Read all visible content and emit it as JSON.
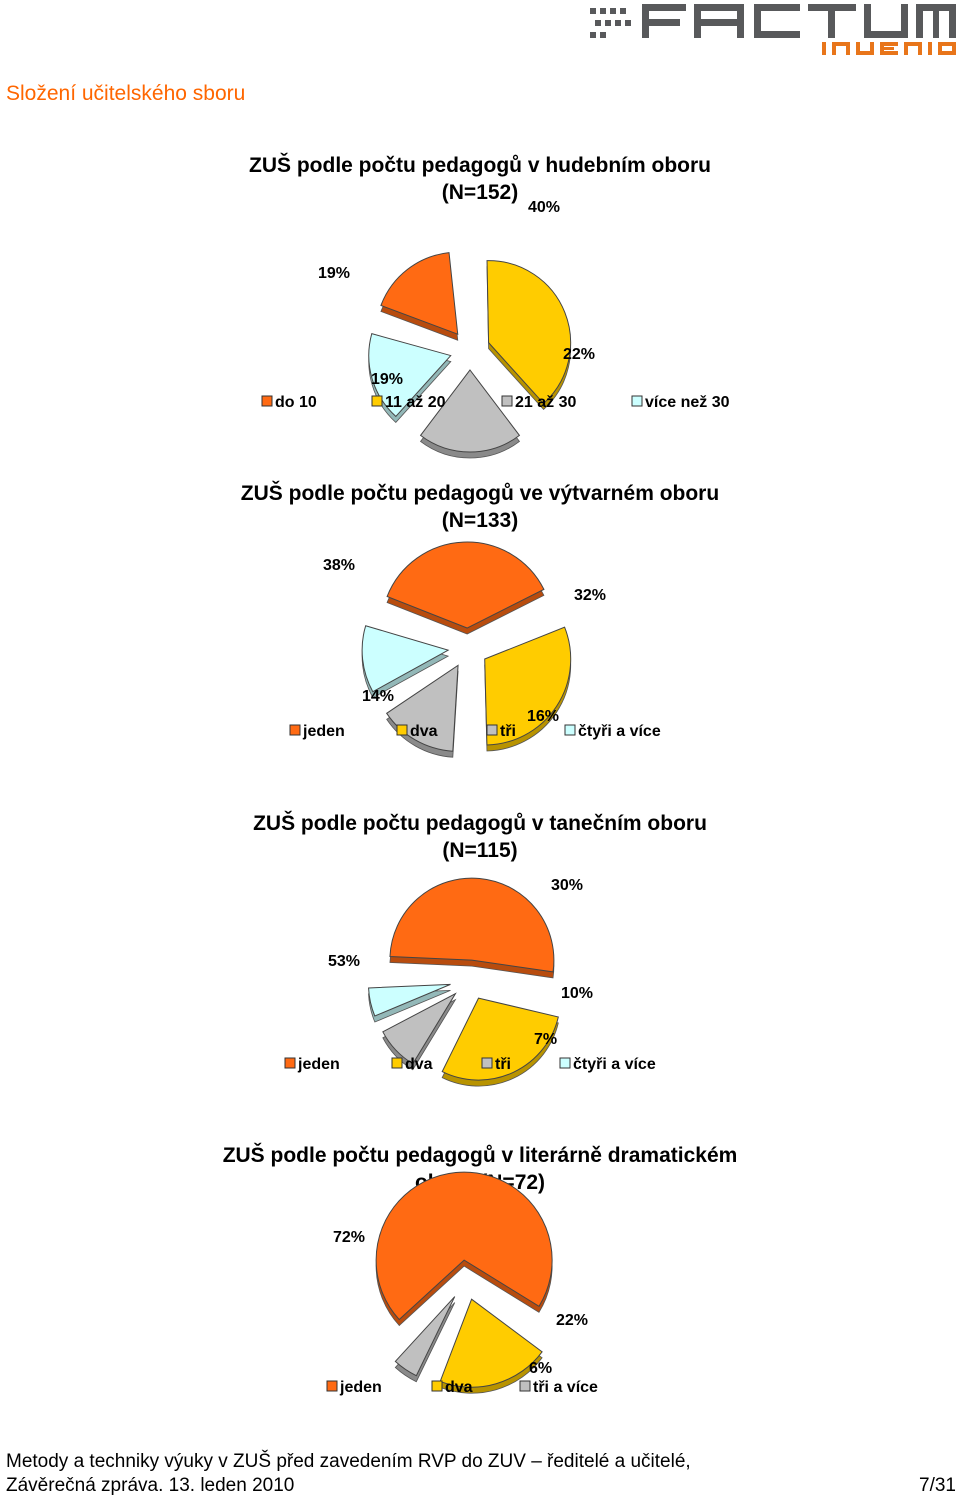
{
  "logo": {
    "text_top": "FACTUM",
    "text_bottom": "INVENIO",
    "color_dark": "#58595b",
    "color_accent": "#e8751a"
  },
  "section_title": "Složení učitelského sboru",
  "colors": {
    "orange": "#ff6a13",
    "yellow": "#ffcc00",
    "gray": "#c0c0c0",
    "lightblue": "#ccffff"
  },
  "chart_data": [
    {
      "type": "pie",
      "title_line1": "ZUŠ podle počtu pedagogů v hudebním oboru",
      "title_line2": "(N=152)",
      "categories": [
        "do 10",
        "11 až 20",
        "21 až 30",
        "více než 30"
      ],
      "values": [
        19,
        40,
        22,
        19
      ],
      "value_labels": [
        "19%",
        "40%",
        "22%",
        "19%"
      ],
      "colors": [
        "#ff6a13",
        "#ffcc00",
        "#c0c0c0",
        "#ccffff"
      ],
      "legend_position": "bottom",
      "exploded": true
    },
    {
      "type": "pie",
      "title_line1": "ZUŠ podle počtu pedagogů ve výtvarném oboru",
      "title_line2": "(N=133)",
      "categories": [
        "jeden",
        "dva",
        "tři",
        "čtyři a více"
      ],
      "values": [
        38,
        32,
        16,
        14
      ],
      "value_labels": [
        "38%",
        "32%",
        "16%",
        "14%"
      ],
      "colors": [
        "#ff6a13",
        "#ffcc00",
        "#c0c0c0",
        "#ccffff"
      ],
      "legend_position": "bottom",
      "exploded": true
    },
    {
      "type": "pie",
      "title_line1": "ZUŠ podle počtu pedagogů v tanečním oboru",
      "title_line2": "(N=115)",
      "categories": [
        "jeden",
        "dva",
        "tři",
        "čtyři a více"
      ],
      "values": [
        53,
        30,
        10,
        7
      ],
      "value_labels": [
        "53%",
        "30%",
        "10%",
        "7%"
      ],
      "colors": [
        "#ff6a13",
        "#ffcc00",
        "#c0c0c0",
        "#ccffff"
      ],
      "legend_position": "bottom",
      "exploded": true
    },
    {
      "type": "pie",
      "title_line1": "ZUŠ podle počtu pedagogů v literárně dramatickém",
      "title_line2": "oboru (N=72)",
      "categories": [
        "jeden",
        "dva",
        "tři a více"
      ],
      "values": [
        72,
        22,
        6
      ],
      "value_labels": [
        "72%",
        "22%",
        "6%"
      ],
      "colors": [
        "#ff6a13",
        "#ffcc00",
        "#c0c0c0"
      ],
      "legend_position": "bottom",
      "exploded": true
    }
  ],
  "footer": {
    "line1": "Metody a techniky výuky v ZUŠ před zavedením RVP do ZUV – ředitelé a učitelé,",
    "line2": "Závěrečná zpráva. 13. leden 2010",
    "page": "7/31"
  }
}
